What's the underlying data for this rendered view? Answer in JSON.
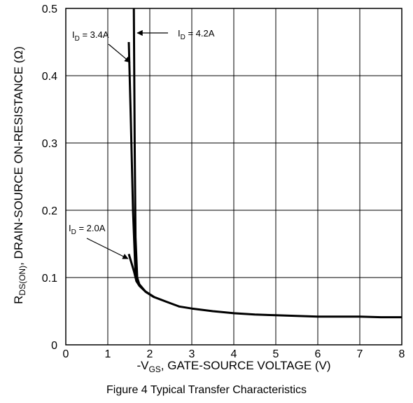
{
  "chart_data": {
    "type": "line",
    "caption": "Figure 4  Typical Transfer Characteristics",
    "xlabel": {
      "prefix": "-V",
      "sub": "GS",
      "rest": ", GATE-SOURCE VOLTAGE (V)"
    },
    "ylabel": {
      "prefix": "R",
      "sub": "DS(ON)",
      "rest": ", DRAIN-SOURCE ON-RESISTANCE (Ω)"
    },
    "xlim": [
      0,
      8
    ],
    "ylim": [
      0,
      0.5
    ],
    "xticks": [
      "0",
      "1",
      "2",
      "3",
      "4",
      "5",
      "6",
      "7",
      "8"
    ],
    "yticks": [
      "0",
      "0.1",
      "0.2",
      "0.3",
      "0.4",
      "0.5"
    ],
    "grid": true,
    "series": [
      {
        "name": "I_D = 2.0A",
        "x": [
          1.5,
          1.62,
          1.68,
          1.75,
          1.9,
          2.1,
          2.4,
          2.7,
          3.0,
          3.5,
          4.0,
          4.5,
          5.0,
          5.5,
          6.0,
          6.5,
          7.0,
          7.5,
          8.0
        ],
        "y": [
          0.135,
          0.11,
          0.095,
          0.088,
          0.079,
          0.071,
          0.064,
          0.057,
          0.054,
          0.05,
          0.047,
          0.045,
          0.044,
          0.043,
          0.042,
          0.042,
          0.042,
          0.041,
          0.041
        ]
      },
      {
        "name": "I_D = 3.4A",
        "x": [
          1.5,
          1.55,
          1.6,
          1.65,
          1.68,
          1.75,
          1.9,
          2.1
        ],
        "y": [
          0.45,
          0.33,
          0.2,
          0.12,
          0.095,
          0.088,
          0.079,
          0.071
        ]
      },
      {
        "name": "I_D = 4.2A",
        "x": [
          1.62,
          1.64,
          1.66,
          1.7,
          1.75,
          1.9,
          2.1
        ],
        "y": [
          0.5,
          0.3,
          0.16,
          0.1,
          0.09,
          0.079,
          0.071
        ]
      }
    ],
    "annotations": [
      {
        "text_prefix": "I",
        "text_sub": "D",
        "text_rest": " = 3.4A",
        "points_to": [
          1.53,
          0.42
        ]
      },
      {
        "text_prefix": "I",
        "text_sub": "D",
        "text_rest": " = 4.2A",
        "points_to": [
          1.67,
          0.465
        ]
      },
      {
        "text_prefix": "I",
        "text_sub": "D",
        "text_rest": " = 2.0A",
        "points_to": [
          1.48,
          0.128
        ]
      }
    ]
  }
}
